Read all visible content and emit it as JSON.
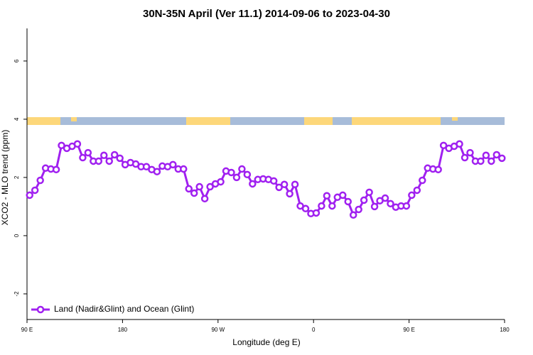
{
  "chart_data": {
    "type": "line",
    "title": "30N-35N April (Ver 11.1)   2014-09-06 to 2023-04-30",
    "xlabel": "Longitude (deg E)",
    "ylabel": "XCO2 - MLO trend (ppm)",
    "xlim": [
      90,
      540
    ],
    "ylim": [
      -2.88,
      7.12
    ],
    "xticks": [
      {
        "value": 90,
        "label": "90 E"
      },
      180,
      {
        "value": 270,
        "label": "90 W"
      },
      {
        "value": 360,
        "label": "0"
      },
      {
        "value": 450,
        "label": "90 E"
      },
      {
        "value": 540,
        "label": "180"
      }
    ],
    "yticks": [
      -2,
      0,
      2,
      4,
      6
    ],
    "grid": false,
    "legend": "bottom-left",
    "x": [
      92.5,
      97.5,
      102.5,
      107.5,
      112.5,
      117.5,
      122.5,
      127.5,
      132.5,
      137.5,
      142.5,
      147.5,
      152.5,
      157.5,
      162.5,
      167.5,
      172.5,
      177.5,
      182.5,
      187.5,
      192.5,
      197.5,
      202.5,
      207.5,
      212.5,
      217.5,
      222.5,
      227.5,
      232.5,
      237.5,
      242.5,
      247.5,
      252.5,
      257.5,
      262.5,
      267.5,
      272.5,
      277.5,
      282.5,
      287.5,
      292.5,
      297.5,
      302.5,
      307.5,
      312.5,
      317.5,
      322.5,
      327.5,
      332.5,
      337.5,
      342.5,
      347.5,
      352.5,
      357.5,
      362.5,
      367.5,
      372.5,
      377.5,
      382.5,
      387.5,
      392.5,
      397.5,
      402.5,
      407.5,
      412.5,
      417.5,
      422.5,
      427.5,
      432.5,
      437.5,
      442.5,
      447.5,
      452.5,
      457.5,
      462.5,
      467.5,
      472.5,
      477.5,
      482.5,
      487.5,
      492.5,
      497.5,
      502.5,
      507.5,
      512.5,
      517.5,
      522.5,
      527.5,
      532.5,
      537.5
    ],
    "series": [
      {
        "name": "Land (Nadir&Glint) and Ocean (Glint)",
        "color": "#a020f0",
        "values": [
          1.39,
          1.56,
          1.9,
          2.32,
          2.29,
          2.27,
          3.1,
          3.0,
          3.07,
          3.15,
          2.68,
          2.85,
          2.56,
          2.56,
          2.76,
          2.56,
          2.78,
          2.66,
          2.44,
          2.51,
          2.46,
          2.37,
          2.37,
          2.27,
          2.2,
          2.39,
          2.37,
          2.44,
          2.29,
          2.29,
          1.61,
          1.46,
          1.68,
          1.27,
          1.68,
          1.78,
          1.85,
          2.22,
          2.17,
          2.0,
          2.29,
          2.1,
          1.78,
          1.93,
          1.95,
          1.93,
          1.88,
          1.66,
          1.76,
          1.44,
          1.76,
          1.02,
          0.93,
          0.76,
          0.78,
          1.02,
          1.37,
          1.02,
          1.32,
          1.39,
          1.17,
          0.71,
          0.9,
          1.22,
          1.49,
          1.0,
          1.2,
          1.29,
          1.1,
          0.98,
          1.02,
          1.02,
          1.39,
          1.56,
          1.9,
          2.32,
          2.29,
          2.27,
          3.1,
          3.0,
          3.07,
          3.15,
          2.68,
          2.85,
          2.56,
          2.56,
          2.76,
          2.56,
          2.78,
          2.66
        ]
      }
    ]
  }
}
